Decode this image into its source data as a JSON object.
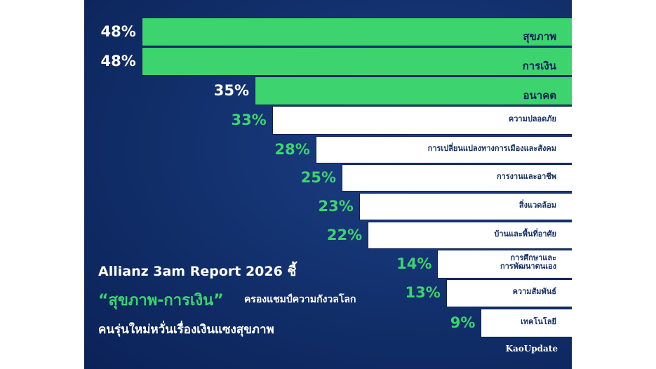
{
  "chart_data": {
    "type": "bar",
    "orientation": "horizontal",
    "categories": [
      "สุขภาพ",
      "การเงิน",
      "อนาคต",
      "ความปลอดภัย",
      "การเปลี่ยนแปลงทางการเมืองและสังคม",
      "การงานและอาชีพ",
      "สิ่งแวดล้อม",
      "บ้านและพื้นที่อาศัย",
      "การศึกษาและ\nการพัฒนาตนเอง",
      "ความสัมพันธ์",
      "เทคโนโลยี"
    ],
    "values": [
      48,
      48,
      35,
      33,
      28,
      25,
      23,
      22,
      14,
      13,
      9
    ],
    "value_labels": [
      "48%",
      "48%",
      "35%",
      "33%",
      "28%",
      "25%",
      "23%",
      "22%",
      "14%",
      "13%",
      "9%"
    ],
    "colors": [
      "#3dd46f",
      "#3dd46f",
      "#3dd46f",
      "#ffffff",
      "#ffffff",
      "#ffffff",
      "#ffffff",
      "#ffffff",
      "#ffffff",
      "#ffffff",
      "#ffffff"
    ],
    "title_line1": "Allianz 3am Report 2026 ชี้",
    "title_highlight": "“สุขภาพ-การเงิน”",
    "title_line2": "ครองแชมป์ความกังวลโลก",
    "title_line3": "คนรุ่นใหม่หวั่นเรื่องเงินแซงสุขภาพ",
    "source": "KaoUpdate"
  }
}
